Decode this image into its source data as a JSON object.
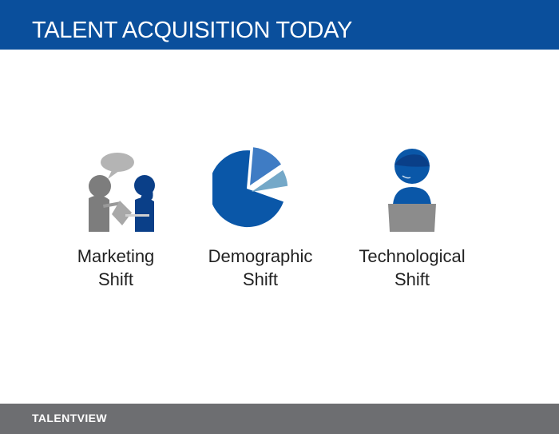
{
  "header": {
    "title": "TALENT ACQUISITION TODAY"
  },
  "items": [
    {
      "icon": "people-conversation-icon",
      "line1": "Marketing",
      "line2": "Shift"
    },
    {
      "icon": "pie-chart-icon",
      "line1": "Demographic",
      "line2": "Shift"
    },
    {
      "icon": "person-laptop-headset-icon",
      "line1": "Technological",
      "line2": "Shift"
    }
  ],
  "footer": {
    "logo": "TALENTVIEW"
  },
  "colors": {
    "header": "#0a4f9c",
    "footer": "#6d6e71",
    "blue": "#0a57a8",
    "gray": "#7d7d7d"
  }
}
